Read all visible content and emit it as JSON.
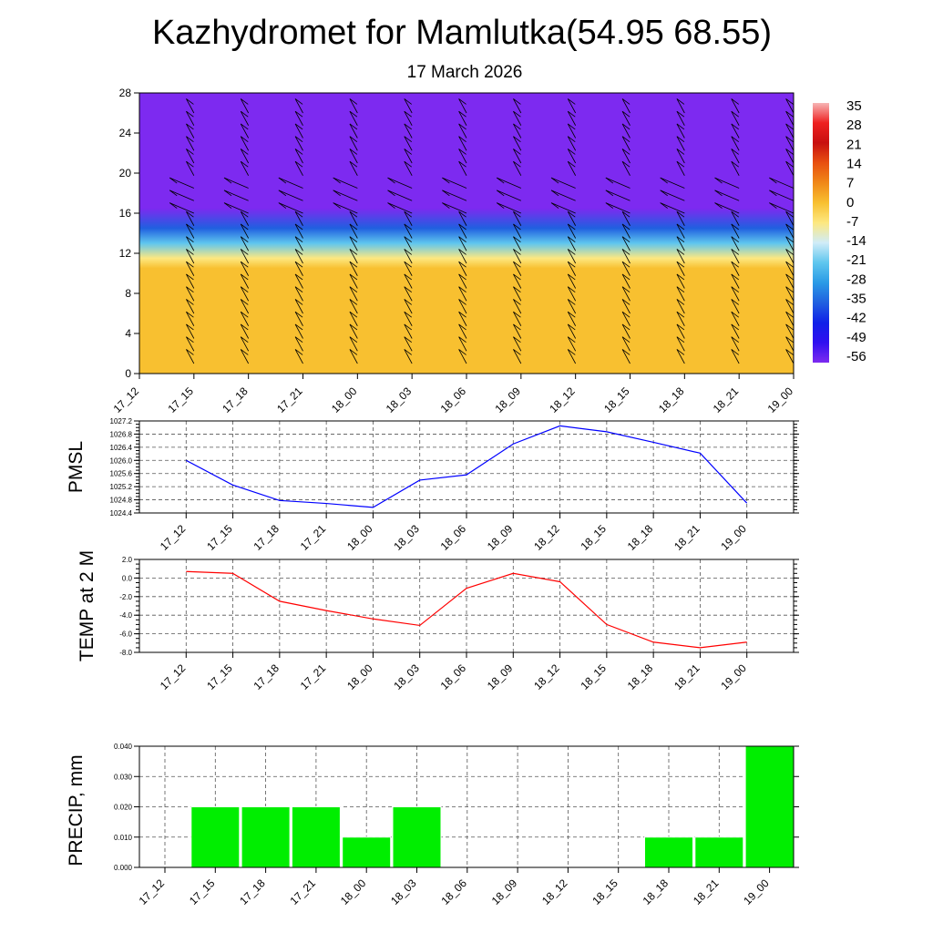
{
  "title": "Kazhydromet for Mamlutka(54.95 68.55)",
  "subtitle": "17 March 2026",
  "time_labels": [
    "17_12",
    "17_15",
    "17_18",
    "17_21",
    "18_00",
    "18_03",
    "18_06",
    "18_09",
    "18_12",
    "18_15",
    "18_18",
    "18_21",
    "19_00"
  ],
  "colors": {
    "pmsl_line": "#0000ff",
    "temp_line": "#ff0000",
    "precip_bar": "#00ee00",
    "grid": "#555555"
  },
  "chart_data": [
    {
      "type": "heatmap",
      "name": "temperature-wind-profile",
      "x": [
        "17_12",
        "17_15",
        "17_18",
        "17_21",
        "18_00",
        "18_03",
        "18_06",
        "18_09",
        "18_12",
        "18_15",
        "18_18",
        "18_21",
        "19_00"
      ],
      "yticks": [
        0,
        4,
        8,
        12,
        16,
        20,
        24,
        28
      ],
      "ylim": [
        0,
        28
      ],
      "colorbar_labels": [
        "35",
        "28",
        "21",
        "14",
        "7",
        "0",
        "-7",
        "-14",
        "-21",
        "-28",
        "-35",
        "-42",
        "-49",
        "-56"
      ],
      "colorbar_colors": [
        "#f7b5b5",
        "#ee2020",
        "#c81010",
        "#e85010",
        "#f08818",
        "#f8c030",
        "#fde880",
        "#d0ecf8",
        "#5fc6ee",
        "#2a9ae6",
        "#2060e0",
        "#1020e8",
        "#3010f0",
        "#7d2af0"
      ],
      "levels": [
        {
          "height": 0,
          "temp": 2
        },
        {
          "height": 6,
          "temp": 3
        },
        {
          "height": 10.5,
          "temp": 1
        },
        {
          "height": 11.5,
          "temp": -10
        },
        {
          "height": 13,
          "temp": -20
        },
        {
          "height": 14.5,
          "temp": -35
        },
        {
          "height": 16.5,
          "temp": -55
        },
        {
          "height": 18,
          "temp": -58
        },
        {
          "height": 28,
          "temp": -58
        }
      ],
      "wind_barbs": "present at every time step and height"
    },
    {
      "type": "line",
      "name": "PMSL",
      "ylabel": "PMSL",
      "x": [
        "17_12",
        "17_15",
        "17_18",
        "17_21",
        "18_00",
        "18_03",
        "18_06",
        "18_09",
        "18_12",
        "18_15",
        "18_18",
        "18_21",
        "19_00"
      ],
      "values": [
        1026.0,
        1025.25,
        1024.78,
        1024.69,
        1024.57,
        1025.4,
        1025.56,
        1026.5,
        1027.05,
        1026.87,
        1026.55,
        1026.22,
        1024.7
      ],
      "ylim": [
        1024.4,
        1027.2
      ],
      "yticks": [
        "1024.4",
        "1024.8",
        "1025.2",
        "1025.6",
        "1026.0",
        "1026.4",
        "1026.8",
        "1027.2"
      ],
      "grid": true
    },
    {
      "type": "line",
      "name": "TEMP at 2 M",
      "ylabel": "TEMP at 2 M",
      "x": [
        "17_12",
        "17_15",
        "17_18",
        "17_21",
        "18_00",
        "18_03",
        "18_06",
        "18_09",
        "18_12",
        "18_15",
        "18_18",
        "18_21",
        "19_00"
      ],
      "values": [
        0.7,
        0.5,
        -2.5,
        -3.5,
        -4.4,
        -5.1,
        -1.1,
        0.5,
        -0.4,
        -5.0,
        -6.9,
        -7.5,
        -6.9
      ],
      "ylim": [
        -8,
        2
      ],
      "yticks": [
        "-8.0",
        "-6.0",
        "-4.0",
        "-2.0",
        "0.0",
        "2.0"
      ],
      "grid": true
    },
    {
      "type": "bar",
      "name": "PRECIP, mm",
      "ylabel": "PRECIP, mm",
      "categories": [
        "17_12",
        "17_15",
        "17_18",
        "17_21",
        "18_00",
        "18_03",
        "18_06",
        "18_09",
        "18_12",
        "18_15",
        "18_18",
        "18_21",
        "19_00"
      ],
      "values": [
        0,
        0.02,
        0.02,
        0.02,
        0.01,
        0.02,
        0,
        0,
        0,
        0,
        0.01,
        0.01,
        0.04
      ],
      "ylim": [
        0,
        0.04
      ],
      "yticks": [
        "0.000",
        "0.010",
        "0.020",
        "0.030",
        "0.040"
      ],
      "grid": true
    }
  ]
}
